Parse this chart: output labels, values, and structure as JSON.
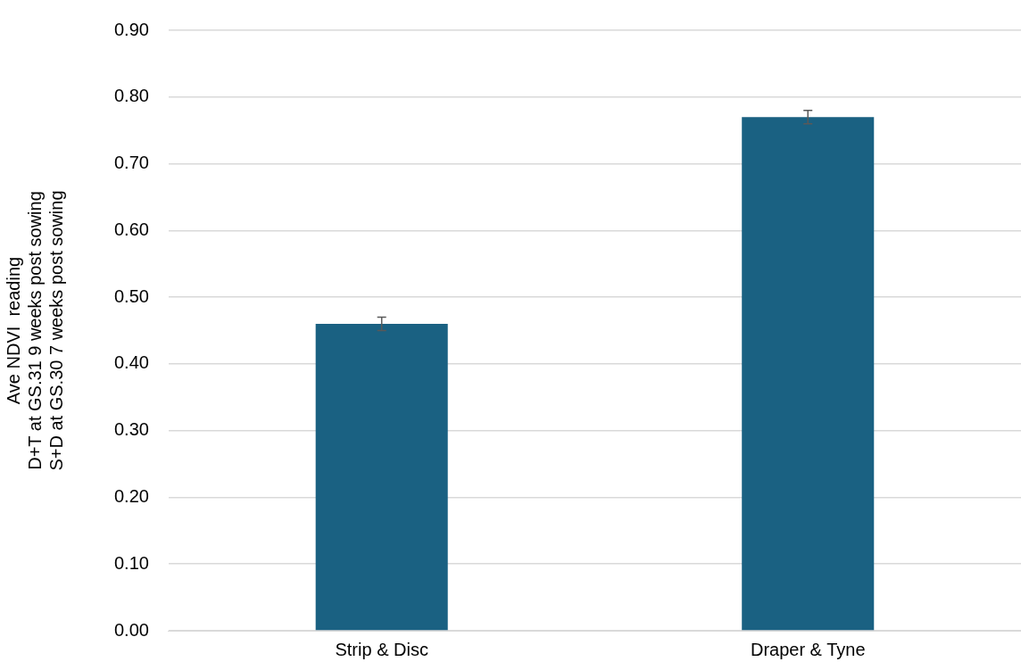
{
  "chart_data": {
    "type": "bar",
    "ylabel": "Ave NDVI  reading\nD+T at GS.31 9 weeks post sowing\nS+D at GS.30 7 weeks post sowing",
    "categories": [
      "Strip & Disc",
      "Draper & Tyne"
    ],
    "values": [
      0.46,
      0.77
    ],
    "errors": [
      0.01,
      0.01
    ],
    "color": "#1a6182",
    "ylim": [
      0,
      0.9
    ],
    "yticks": [
      {
        "value": 0,
        "label": "0.00"
      },
      {
        "value": 0.1,
        "label": "0.10"
      },
      {
        "value": 0.2,
        "label": "0.20"
      },
      {
        "value": 0.3,
        "label": "0.30"
      },
      {
        "value": 0.4,
        "label": "0.40"
      },
      {
        "value": 0.5,
        "label": "0.50"
      },
      {
        "value": 0.6,
        "label": "0.60"
      },
      {
        "value": 0.7,
        "label": "0.70"
      },
      {
        "value": 0.8,
        "label": "0.80"
      },
      {
        "value": 0.9,
        "label": "0.90"
      }
    ],
    "grid": "y"
  }
}
